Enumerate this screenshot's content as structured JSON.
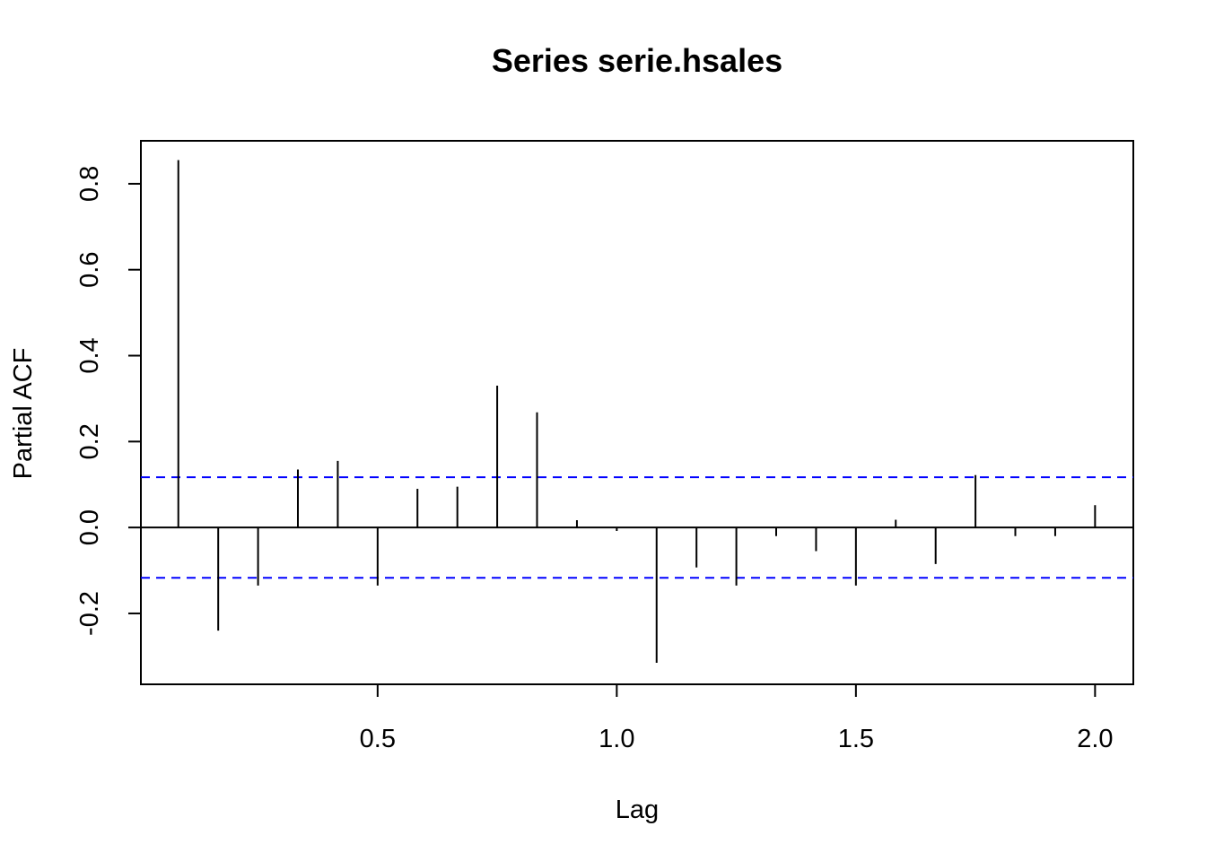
{
  "chart_data": {
    "type": "bar",
    "title": "Series  serie.hsales",
    "xlabel": "Lag",
    "ylabel": "Partial ACF",
    "xlim": [
      0.005,
      2.08
    ],
    "ylim": [
      -0.365,
      0.9
    ],
    "xticks": [
      0.5,
      1.0,
      1.5,
      2.0
    ],
    "xtick_labels": [
      "0.5",
      "1.0",
      "1.5",
      "2.0"
    ],
    "yticks": [
      -0.2,
      0.0,
      0.2,
      0.4,
      0.6,
      0.8
    ],
    "ytick_labels": [
      "-0.2",
      "0.0",
      "0.2",
      "0.4",
      "0.6",
      "0.8"
    ],
    "confidence_limit": 0.117,
    "colors": {
      "bars": "#000000",
      "confidence": "#0000ff",
      "zero_line": "#000000"
    },
    "x": [
      0.0833,
      0.1667,
      0.25,
      0.3333,
      0.4167,
      0.5,
      0.5833,
      0.6667,
      0.75,
      0.8333,
      0.9167,
      1.0,
      1.0833,
      1.1667,
      1.25,
      1.3333,
      1.4167,
      1.5,
      1.5833,
      1.6667,
      1.75,
      1.8333,
      1.9167,
      2.0
    ],
    "values": [
      0.855,
      -0.24,
      -0.135,
      0.135,
      0.155,
      -0.135,
      0.09,
      0.095,
      0.33,
      0.268,
      0.017,
      -0.008,
      -0.315,
      -0.093,
      -0.135,
      -0.02,
      -0.055,
      -0.135,
      0.018,
      -0.085,
      0.122,
      -0.02,
      -0.02,
      0.052
    ]
  }
}
